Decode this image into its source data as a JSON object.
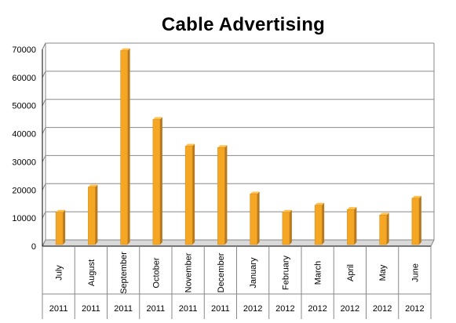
{
  "chart_data": {
    "type": "bar",
    "title": "Cable Advertising",
    "categories": [
      "July",
      "August",
      "September",
      "October",
      "November",
      "December",
      "January",
      "February",
      "March",
      "April",
      "May",
      "June"
    ],
    "years": [
      "2011",
      "2011",
      "2011",
      "2011",
      "2011",
      "2011",
      "2012",
      "2012",
      "2012",
      "2012",
      "2012",
      "2012"
    ],
    "values": [
      11500,
      20500,
      69000,
      44500,
      35000,
      34500,
      18000,
      11500,
      14000,
      12500,
      10500,
      16500
    ],
    "yticks": [
      "0",
      "10000",
      "20000",
      "30000",
      "40000",
      "50000",
      "60000",
      "70000"
    ],
    "ylim": [
      0,
      70000
    ],
    "xlabel": "",
    "ylabel": "",
    "grid": true,
    "legend": "none",
    "bar_color": "#F5A623",
    "bar_side_color": "#B7791F",
    "gridline_color": "#888888",
    "wall_color": "#D9D9D9"
  }
}
